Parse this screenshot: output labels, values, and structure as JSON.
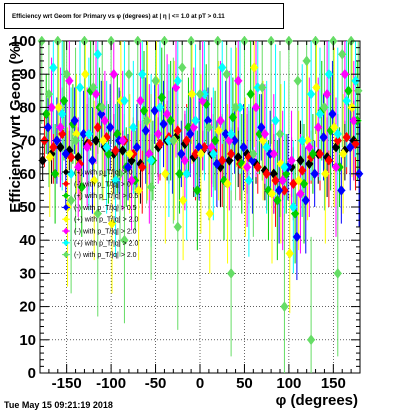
{
  "header": {
    "title": "Efficiency wrt Geom for Primary vs φ (degrees) at | η | <= 1.0 at pT > 0.11"
  },
  "footer": {
    "timestamp": "Tue May 15 09:21:19 2018"
  },
  "chart_data": {
    "type": "scatter",
    "title": "Efficiency wrt Geom for Primary vs φ (degrees) at | η | <= 1.0 at pT > 0.11",
    "xlabel": "φ (degrees)",
    "ylabel": "Efficiency wrt Geom (%)",
    "xlim": [
      -180,
      180
    ],
    "ylim": [
      0,
      100
    ],
    "xticks": [
      -150,
      -100,
      -50,
      0,
      50,
      100,
      150
    ],
    "yticks": [
      0,
      10,
      20,
      30,
      40,
      50,
      60,
      70,
      80,
      90,
      100
    ],
    "grid": true,
    "legend_position": "left-center",
    "legend": [
      {
        "label": "(+) with p_T/|q| > 0",
        "color": "#000000"
      },
      {
        "label": "(-) with p_T/|q| > 0",
        "color": "#ff0000"
      },
      {
        "label": "(+) with p_T/|q| > 0.5",
        "color": "#00cc00"
      },
      {
        "label": "(-) with p_T/|q| > 0.5",
        "color": "#0000ff"
      },
      {
        "label": "(+) with p_T/|q| > 2.0",
        "color": "#ffff00"
      },
      {
        "label": "(-) with p_T/|q| > 2.0",
        "color": "#ff00ff"
      },
      {
        "label": "(+) with p_T/|q| > 2.0",
        "color": "#00ffff"
      },
      {
        "label": "(-) with p_T/|q| > 2.0",
        "color": "#66dd66"
      }
    ],
    "series": [
      {
        "color": "#000000",
        "err": 6,
        "x": [
          -177,
          -167,
          -157,
          -147,
          -137,
          -127,
          -117,
          -107,
          -97,
          -87,
          -77,
          -67,
          -57,
          -47,
          -37,
          -27,
          -17,
          -7,
          3,
          13,
          23,
          33,
          43,
          53,
          63,
          73,
          83,
          93,
          103,
          113,
          123,
          133,
          143,
          153,
          163,
          173
        ],
        "y": [
          64,
          66,
          68,
          67,
          65,
          69,
          70,
          68,
          66,
          67,
          64,
          63,
          66,
          68,
          70,
          71,
          69,
          65,
          67,
          66,
          62,
          64,
          65,
          66,
          63,
          61,
          60,
          58,
          62,
          64,
          63,
          66,
          65,
          68,
          67,
          70
        ]
      },
      {
        "color": "#ff0000",
        "err": 8,
        "x": [
          -175,
          -165,
          -155,
          -145,
          -135,
          -125,
          -115,
          -105,
          -95,
          -85,
          -75,
          -65,
          -55,
          -45,
          -35,
          -25,
          -15,
          -5,
          5,
          15,
          25,
          35,
          45,
          55,
          65,
          75,
          85,
          95,
          105,
          115,
          125,
          135,
          145,
          155,
          165,
          175
        ],
        "y": [
          70,
          68,
          72,
          65,
          63,
          69,
          74,
          71,
          67,
          70,
          66,
          62,
          64,
          69,
          71,
          73,
          70,
          66,
          68,
          67,
          64,
          66,
          63,
          65,
          62,
          60,
          58,
          55,
          57,
          61,
          65,
          66,
          64,
          70,
          71,
          69
        ]
      },
      {
        "color": "#00cc00",
        "err": 12,
        "x": [
          -173,
          -163,
          -153,
          -143,
          -133,
          -123,
          -113,
          -103,
          -93,
          -83,
          -73,
          -63,
          -53,
          -43,
          -33,
          -23,
          -13,
          -3,
          7,
          17,
          27,
          37,
          47,
          57,
          67,
          77,
          87,
          97,
          107,
          117,
          127,
          137,
          147,
          157,
          167,
          177
        ],
        "y": [
          78,
          60,
          82,
          75,
          56,
          85,
          80,
          66,
          72,
          62,
          58,
          79,
          64,
          83,
          76,
          60,
          74,
          55,
          81,
          70,
          58,
          77,
          63,
          84,
          72,
          55,
          52,
          60,
          48,
          57,
          66,
          79,
          73,
          62,
          85,
          76
        ]
      },
      {
        "color": "#0000ff",
        "err": 10,
        "x": [
          -171,
          -161,
          -151,
          -141,
          -131,
          -121,
          -111,
          -101,
          -91,
          -81,
          -71,
          -61,
          -51,
          -41,
          -31,
          -21,
          -11,
          -1,
          9,
          19,
          29,
          39,
          49,
          59,
          69,
          79,
          89,
          99,
          109,
          119,
          129,
          139,
          149,
          159,
          169,
          179
        ],
        "y": [
          74,
          70,
          66,
          76,
          72,
          64,
          78,
          74,
          70,
          62,
          68,
          73,
          79,
          75,
          70,
          66,
          72,
          68,
          76,
          63,
          72,
          70,
          68,
          64,
          74,
          66,
          55,
          62,
          41,
          52,
          60,
          71,
          78,
          55,
          68,
          60
        ]
      },
      {
        "color": "#ffff00",
        "err": 18,
        "x": [
          -169,
          -159,
          -149,
          -139,
          -129,
          -119,
          -109,
          -99,
          -89,
          -79,
          -69,
          -59,
          -49,
          -39,
          -29,
          -19,
          -9,
          1,
          11,
          21,
          31,
          41,
          51,
          61,
          71,
          81,
          91,
          101,
          111,
          121,
          131,
          141,
          151,
          161,
          171
        ],
        "y": [
          65,
          80,
          50,
          72,
          90,
          58,
          70,
          45,
          82,
          66,
          55,
          76,
          88,
          60,
          70,
          52,
          84,
          66,
          48,
          73,
          57,
          80,
          62,
          92,
          70,
          54,
          63,
          36,
          58,
          70,
          86,
          60,
          74,
          66,
          80
        ]
      },
      {
        "color": "#ff00ff",
        "err": 15,
        "x": [
          -167,
          -157,
          -147,
          -137,
          -127,
          -117,
          -107,
          -97,
          -87,
          -77,
          -67,
          -57,
          -47,
          -37,
          -27,
          -17,
          -7,
          3,
          13,
          23,
          33,
          43,
          53,
          63,
          73,
          83,
          93,
          103,
          113,
          123,
          133,
          143,
          153,
          163,
          173
        ],
        "y": [
          80,
          74,
          88,
          62,
          68,
          84,
          76,
          90,
          70,
          58,
          82,
          66,
          72,
          78,
          86,
          64,
          74,
          82,
          68,
          76,
          70,
          88,
          62,
          80,
          72,
          66,
          58,
          64,
          54,
          68,
          74,
          84,
          62,
          90,
          76
        ]
      },
      {
        "color": "#00ffff",
        "err": 20,
        "x": [
          -165,
          -155,
          -145,
          -135,
          -125,
          -115,
          -105,
          -95,
          -85,
          -75,
          -65,
          -55,
          -45,
          -35,
          -25,
          -15,
          -5,
          5,
          15,
          25,
          35,
          45,
          55,
          65,
          75,
          85,
          95,
          105,
          115,
          125,
          135,
          145,
          155,
          165,
          175
        ],
        "y": [
          92,
          78,
          60,
          86,
          72,
          96,
          68,
          58,
          82,
          74,
          90,
          64,
          80,
          70,
          88,
          60,
          76,
          84,
          66,
          92,
          72,
          80,
          58,
          86,
          68,
          76,
          62,
          50,
          70,
          84,
          78,
          90,
          72,
          82,
          88
        ]
      },
      {
        "color": "#66dd66",
        "err": 25,
        "x": [
          -178,
          -170,
          -160,
          -150,
          -140,
          -130,
          -120,
          -110,
          -100,
          -90,
          -80,
          -70,
          -60,
          -50,
          -40,
          -30,
          -20,
          -10,
          0,
          10,
          20,
          30,
          40,
          50,
          60,
          70,
          80,
          90,
          100,
          110,
          120,
          130,
          140,
          150,
          160,
          170,
          178,
          -145,
          -115,
          -85,
          -55,
          -25,
          35,
          95,
          125,
          155
        ],
        "y": [
          100,
          84,
          100,
          90,
          70,
          100,
          86,
          80,
          100,
          60,
          90,
          100,
          76,
          88,
          100,
          70,
          92,
          100,
          84,
          74,
          100,
          90,
          80,
          100,
          66,
          86,
          100,
          72,
          100,
          88,
          94,
          100,
          80,
          100,
          96,
          100,
          85,
          52,
          48,
          40,
          56,
          44,
          30,
          20,
          10,
          30
        ]
      }
    ]
  }
}
